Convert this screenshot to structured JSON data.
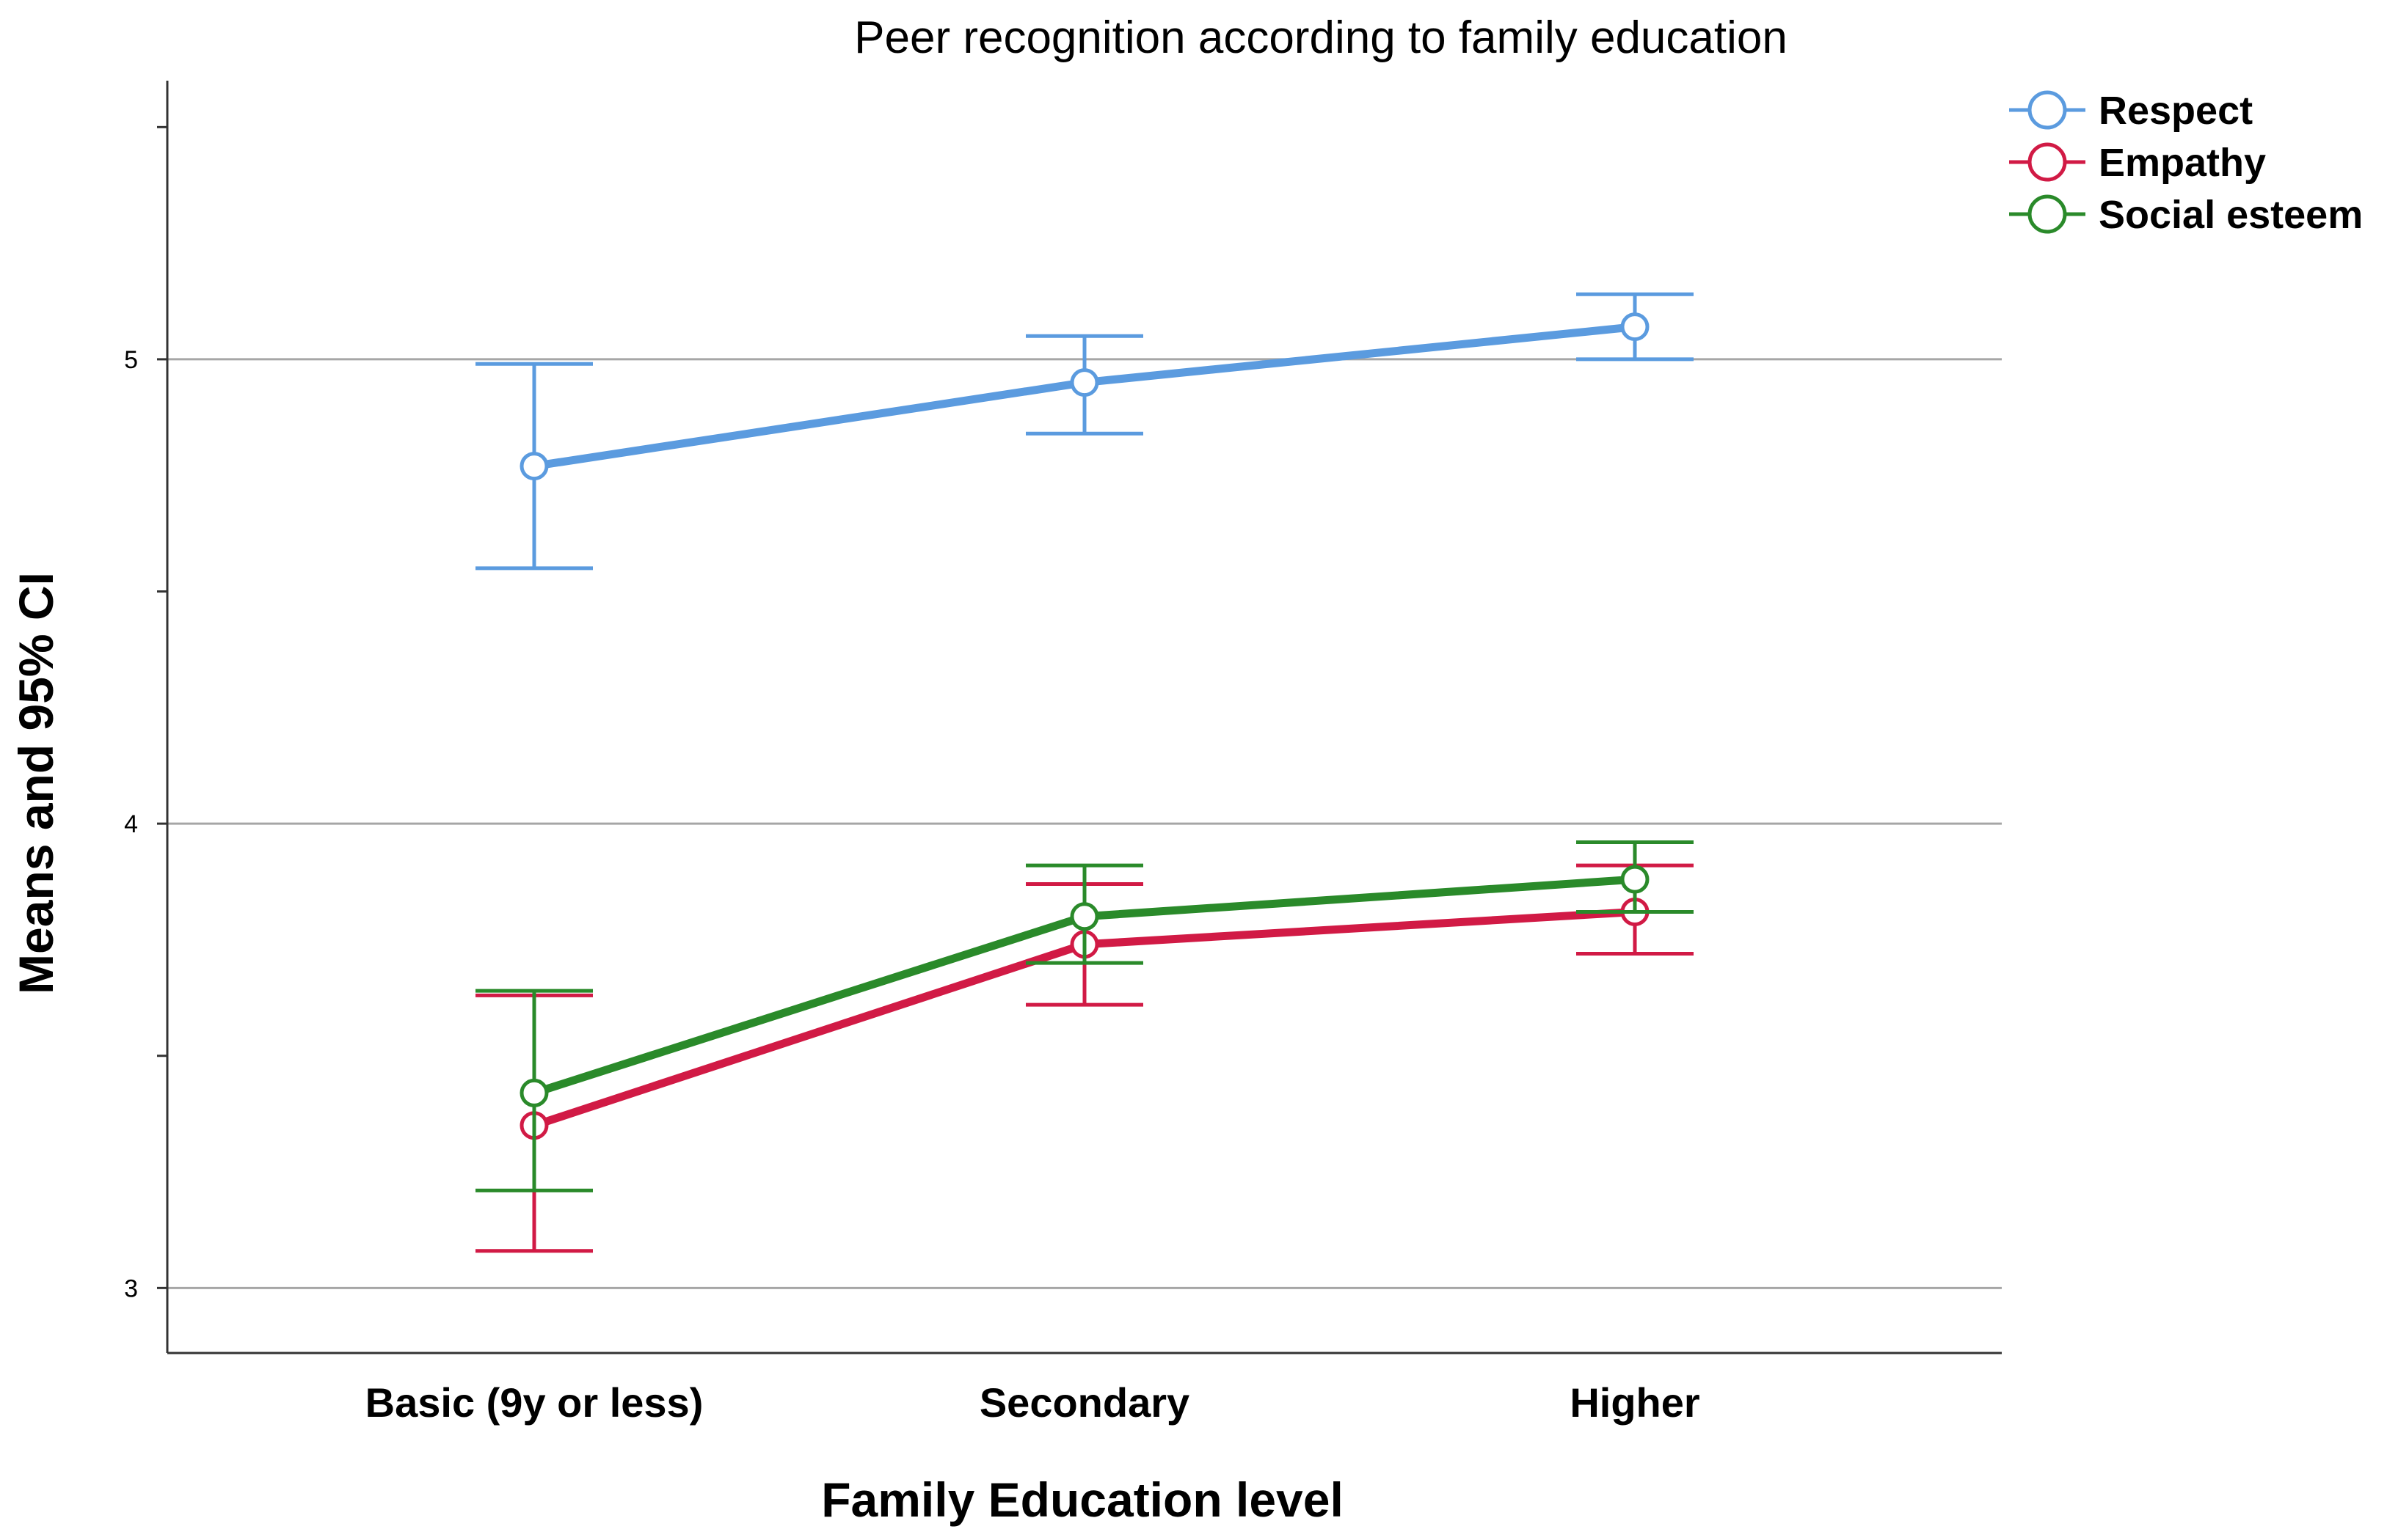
{
  "chart_data": {
    "type": "line",
    "title": "Peer recognition according to family education",
    "xlabel": "Family Education level",
    "ylabel": "Means and 95% CI",
    "categories": [
      "Basic (9y or less)",
      "Secondary",
      "Higher"
    ],
    "ylim": [
      2.86,
      5.6
    ],
    "yticks": [
      3,
      4,
      5
    ],
    "ytick_labels": [
      "3",
      "4",
      "5"
    ],
    "grid": true,
    "legend_position": "top-right",
    "series": [
      {
        "name": "Respect",
        "color": "#5b9bdf",
        "values": [
          4.77,
          4.95,
          5.07
        ],
        "ci_lower": [
          4.55,
          4.84,
          5.0
        ],
        "ci_upper": [
          4.99,
          5.05,
          5.14
        ]
      },
      {
        "name": "Empathy",
        "color": "#d11a45",
        "values": [
          3.35,
          3.74,
          3.81
        ],
        "ci_lower": [
          3.08,
          3.61,
          3.72
        ],
        "ci_upper": [
          3.63,
          3.87,
          3.91
        ]
      },
      {
        "name": "Social esteem",
        "color": "#2a8a2a",
        "values": [
          3.42,
          3.8,
          3.88
        ],
        "ci_lower": [
          3.21,
          3.7,
          3.81
        ],
        "ci_upper": [
          3.64,
          3.91,
          3.96
        ]
      }
    ]
  }
}
